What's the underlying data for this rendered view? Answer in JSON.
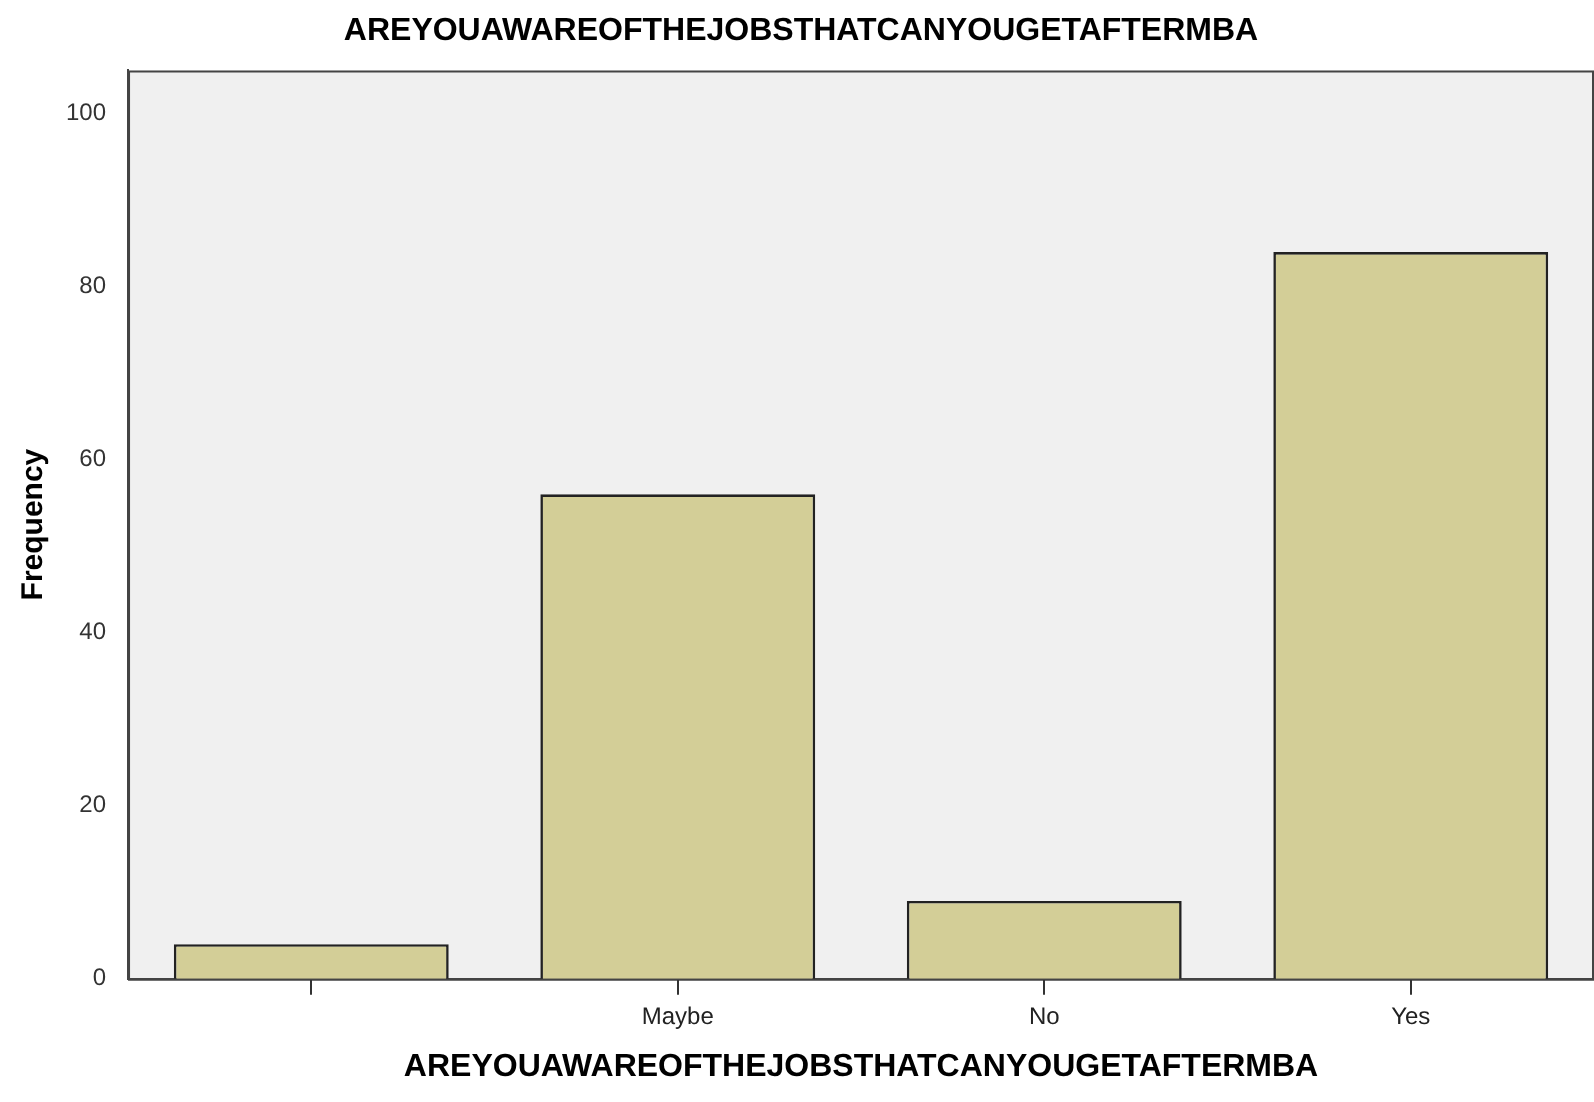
{
  "chart_data": {
    "type": "bar",
    "title": "AREYOUAWAREOFTHEJOBSTHATCANYOUGETAFTERMBA",
    "xlabel": "AREYOUAWAREOFTHEJOBSTHATCANYOUGETAFTERMBA",
    "ylabel": "Frequency",
    "categories": [
      null,
      "Maybe",
      "No",
      "Yes"
    ],
    "values": [
      4,
      56,
      9,
      84
    ],
    "color": "#d3ce97",
    "ylim": [
      0,
      105
    ],
    "yticks": [
      0,
      20,
      40,
      60,
      80,
      100
    ],
    "grid": false,
    "legend": false
  }
}
